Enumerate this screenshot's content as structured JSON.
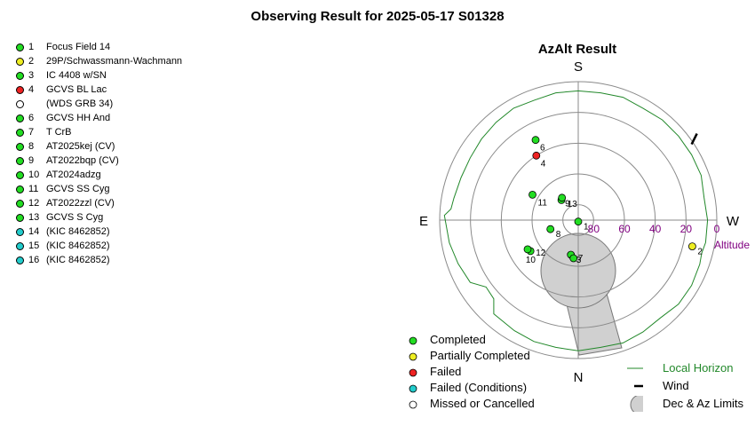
{
  "page": {
    "title": "Observing Result for 2025-05-17 S01328"
  },
  "colors": {
    "completed": "#22dd22",
    "partial": "#eeee22",
    "failed": "#ee2222",
    "failed_conditions": "#22cccc",
    "missed": "#ffffff",
    "horizon": "#22882a",
    "limits_fill": "#d0d0d0",
    "altitude_label": "#800080"
  },
  "targets": [
    {
      "num": "1",
      "name": "Focus Field 14",
      "status": "completed"
    },
    {
      "num": "2",
      "name": "29P/Schwassmann-Wachmann",
      "status": "partial"
    },
    {
      "num": "3",
      "name": "IC 4408 w/SN",
      "status": "completed"
    },
    {
      "num": "4",
      "name": "GCVS BL Lac",
      "status": "failed"
    },
    {
      "num": "",
      "name": "(WDS GRB 34)",
      "status": "missed"
    },
    {
      "num": "6",
      "name": "GCVS HH And",
      "status": "completed"
    },
    {
      "num": "7",
      "name": "T CrB",
      "status": "completed"
    },
    {
      "num": "8",
      "name": "AT2025kej (CV)",
      "status": "completed"
    },
    {
      "num": "9",
      "name": "AT2022bqp (CV)",
      "status": "completed"
    },
    {
      "num": "10",
      "name": "AT2024adzg",
      "status": "completed"
    },
    {
      "num": "11",
      "name": "GCVS SS Cyg",
      "status": "completed"
    },
    {
      "num": "12",
      "name": "AT2022zzl (CV)",
      "status": "completed"
    },
    {
      "num": "13",
      "name": "GCVS S Cyg",
      "status": "completed"
    },
    {
      "num": "14",
      "name": "(KIC 8462852)",
      "status": "failed_conditions"
    },
    {
      "num": "15",
      "name": "(KIC 8462852)",
      "status": "failed_conditions"
    },
    {
      "num": "16",
      "name": "(KIC 8462852)",
      "status": "failed_conditions"
    }
  ],
  "chart_data": {
    "type": "polar_scatter",
    "title": "AzAlt Result",
    "directions": {
      "top": "S",
      "bottom": "N",
      "left": "E",
      "right": "W"
    },
    "altitude_rings": [
      0,
      20,
      40,
      60,
      80
    ],
    "altitude_tick_labels": [
      "80",
      "60",
      "40",
      "20",
      "0"
    ],
    "altitude_axis_label": "Altitude",
    "points": [
      {
        "label": "1",
        "az": 180,
        "alt": 89,
        "status": "completed"
      },
      {
        "label": "2",
        "az": 257,
        "alt": 14,
        "status": "partial"
      },
      {
        "label": "3",
        "az": 168,
        "alt": 67,
        "status": "completed"
      },
      {
        "label": "7",
        "az": 173,
        "alt": 65,
        "status": "completed"
      },
      {
        "label": "12",
        "az": 123,
        "alt": 53,
        "status": "completed"
      },
      {
        "label": "10",
        "az": 120,
        "alt": 52,
        "status": "completed"
      },
      {
        "label": "8",
        "az": 108,
        "alt": 71,
        "status": "completed"
      },
      {
        "label": "9",
        "az": 40,
        "alt": 73,
        "status": "completed"
      },
      {
        "label": "13",
        "az": 36,
        "alt": 72,
        "status": "completed"
      },
      {
        "label": "11",
        "az": 61,
        "alt": 56,
        "status": "completed"
      },
      {
        "label": "4",
        "az": 33,
        "alt": 40,
        "status": "failed"
      },
      {
        "label": "6",
        "az": 28,
        "alt": 31,
        "status": "completed"
      }
    ],
    "horizon": [
      [
        0,
        6
      ],
      [
        10,
        6
      ],
      [
        20,
        7
      ],
      [
        30,
        6
      ],
      [
        40,
        7
      ],
      [
        50,
        8
      ],
      [
        60,
        9
      ],
      [
        70,
        9
      ],
      [
        80,
        8
      ],
      [
        85,
        7
      ],
      [
        88,
        3
      ],
      [
        100,
        5
      ],
      [
        110,
        7
      ],
      [
        120,
        9
      ],
      [
        126,
        16
      ],
      [
        133,
        15
      ],
      [
        138,
        8
      ],
      [
        150,
        7
      ],
      [
        160,
        6
      ],
      [
        170,
        6
      ],
      [
        180,
        5
      ],
      [
        190,
        6
      ],
      [
        200,
        5
      ],
      [
        210,
        6
      ],
      [
        220,
        7
      ],
      [
        230,
        5
      ],
      [
        240,
        5
      ],
      [
        250,
        6
      ],
      [
        255,
        7
      ],
      [
        260,
        6
      ],
      [
        270,
        6
      ],
      [
        280,
        7
      ],
      [
        290,
        5
      ],
      [
        300,
        5
      ],
      [
        310,
        5
      ],
      [
        320,
        5
      ],
      [
        330,
        6
      ],
      [
        340,
        5
      ],
      [
        350,
        6
      ],
      [
        360,
        6
      ]
    ],
    "wind": {
      "az": 305,
      "alt": -2
    },
    "legend": [
      {
        "symbol": "completed",
        "label": "Completed"
      },
      {
        "symbol": "partial",
        "label": "Partially Completed"
      },
      {
        "symbol": "failed",
        "label": "Failed"
      },
      {
        "symbol": "failed_conditions",
        "label": "Failed (Conditions)"
      },
      {
        "symbol": "missed",
        "label": "Missed or Cancelled"
      },
      {
        "symbol": "horizon",
        "label": "Local Horizon"
      },
      {
        "symbol": "wind",
        "label": "Wind"
      },
      {
        "symbol": "limits",
        "label": "Dec & Az Limits"
      }
    ]
  }
}
